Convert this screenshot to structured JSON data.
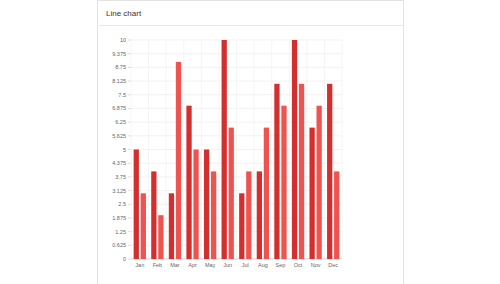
{
  "chart_data": {
    "type": "bar",
    "title": "Line chart",
    "categories": [
      "Jan",
      "Feb",
      "Mar",
      "Apr",
      "May",
      "Jun",
      "Jul",
      "Aug",
      "Sep",
      "Oct",
      "Nov",
      "Dec"
    ],
    "series": [
      {
        "color": "#d32f2f",
        "values": [
          5,
          4,
          3,
          7,
          5,
          10,
          3,
          4,
          8,
          10,
          6,
          8
        ]
      },
      {
        "color": "#ef5350",
        "values": [
          3,
          2,
          9,
          5,
          4,
          6,
          4,
          6,
          7,
          8,
          7,
          4
        ]
      }
    ],
    "ylim": [
      0,
      10
    ],
    "yticks": [
      0,
      0.625,
      1.25,
      1.875,
      2.5,
      3.125,
      3.75,
      4.375,
      5,
      5.625,
      6.25,
      6.875,
      7.5,
      8.125,
      8.75,
      9.375,
      10
    ],
    "grid": true
  }
}
